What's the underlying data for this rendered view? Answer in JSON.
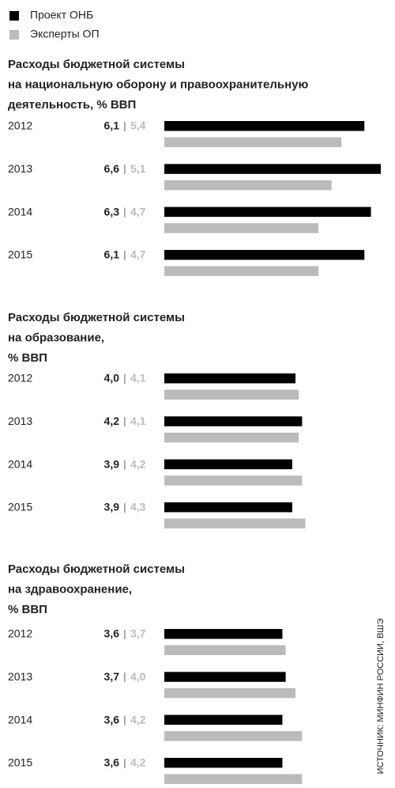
{
  "chart_data": [
    {
      "type": "bar",
      "orientation": "horizontal",
      "title": [
        "Расходы бюджетной системы",
        "на национальную оборону и правоохранительную",
        "деятельность, % ВВП"
      ],
      "categories": [
        "2012",
        "2013",
        "2014",
        "2015"
      ],
      "series": [
        {
          "name": "Проект ОНБ",
          "color": "#000000",
          "values": [
            6.1,
            6.6,
            6.3,
            6.1
          ],
          "value_labels": [
            "6,1",
            "6,6",
            "6,3",
            "6,1"
          ]
        },
        {
          "name": "Эксперты ОП",
          "color": "#bbbbbb",
          "values": [
            5.4,
            5.1,
            4.7,
            4.7
          ],
          "value_labels": [
            "5,4",
            "5,1",
            "4,7",
            "4,7"
          ]
        }
      ]
    },
    {
      "type": "bar",
      "orientation": "horizontal",
      "title": [
        "Расходы бюджетной системы",
        "на образование,",
        "% ВВП"
      ],
      "categories": [
        "2012",
        "2013",
        "2014",
        "2015"
      ],
      "series": [
        {
          "name": "Проект ОНБ",
          "color": "#000000",
          "values": [
            4.0,
            4.2,
            3.9,
            3.9
          ],
          "value_labels": [
            "4,0",
            "4,2",
            "3,9",
            "3,9"
          ]
        },
        {
          "name": "Эксперты ОП",
          "color": "#bbbbbb",
          "values": [
            4.1,
            4.1,
            4.2,
            4.3
          ],
          "value_labels": [
            "4,1",
            "4,1",
            "4,2",
            "4,3"
          ]
        }
      ]
    },
    {
      "type": "bar",
      "orientation": "horizontal",
      "title": [
        "Расходы бюджетной системы",
        "на здравоохранение,",
        "% ВВП"
      ],
      "categories": [
        "2012",
        "2013",
        "2014",
        "2015"
      ],
      "series": [
        {
          "name": "Проект ОНБ",
          "color": "#000000",
          "values": [
            3.6,
            3.7,
            3.6,
            3.6
          ],
          "value_labels": [
            "3,6",
            "3,7",
            "3,6",
            "3,6"
          ]
        },
        {
          "name": "Эксперты ОП",
          "color": "#bbbbbb",
          "values": [
            3.7,
            4.0,
            4.2,
            4.2
          ],
          "value_labels": [
            "3,7",
            "4,0",
            "4,2",
            "4,2"
          ]
        }
      ]
    }
  ],
  "separator": "|",
  "source": "ИСТОЧНИК: МИНФИН РОССИИ, ВШЭ"
}
